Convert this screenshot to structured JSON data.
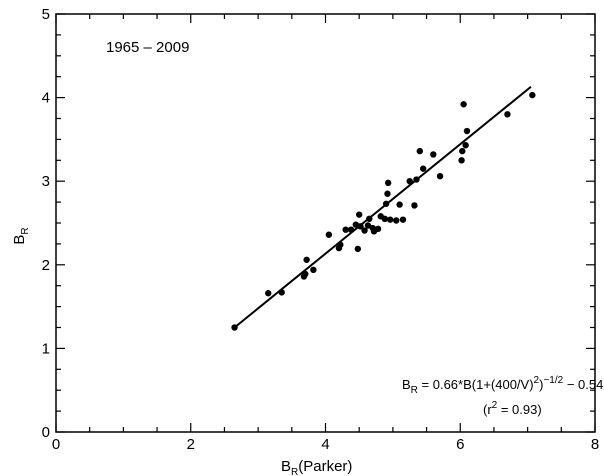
{
  "chart_data": {
    "type": "scatter",
    "period_label": "1965 – 2009",
    "xlabel": {
      "main": "B",
      "sub": "R",
      "rest": "(Parker)"
    },
    "ylabel": {
      "main": "B",
      "sub": "R"
    },
    "xlim": [
      0,
      8
    ],
    "ylim": [
      0,
      5
    ],
    "xticks": [
      0,
      2,
      4,
      6,
      8
    ],
    "yticks": [
      0,
      1,
      2,
      3,
      4,
      5
    ],
    "grid": false,
    "formula": {
      "lhs_main": "B",
      "lhs_sub": "R",
      "text1": " = 0.66*B(1+(400/V)",
      "sup1": "2",
      "text2": ")",
      "sup2": "−1/2",
      "text3": " − 0.54"
    },
    "r2": {
      "open": "(r",
      "sup": "2",
      "close": " = 0.93)"
    },
    "fit_line": {
      "x": [
        2.65,
        7.05
      ],
      "y": [
        1.25,
        4.13
      ]
    },
    "points": [
      {
        "x": 2.65,
        "y": 1.25
      },
      {
        "x": 3.15,
        "y": 1.66
      },
      {
        "x": 3.35,
        "y": 1.67
      },
      {
        "x": 3.68,
        "y": 1.86
      },
      {
        "x": 3.7,
        "y": 1.89
      },
      {
        "x": 3.72,
        "y": 2.06
      },
      {
        "x": 3.82,
        "y": 1.94
      },
      {
        "x": 4.05,
        "y": 2.36
      },
      {
        "x": 4.2,
        "y": 2.2
      },
      {
        "x": 4.22,
        "y": 2.24
      },
      {
        "x": 4.3,
        "y": 2.42
      },
      {
        "x": 4.38,
        "y": 2.42
      },
      {
        "x": 4.45,
        "y": 2.48
      },
      {
        "x": 4.48,
        "y": 2.19
      },
      {
        "x": 4.5,
        "y": 2.6
      },
      {
        "x": 4.52,
        "y": 2.46
      },
      {
        "x": 4.58,
        "y": 2.41
      },
      {
        "x": 4.63,
        "y": 2.47
      },
      {
        "x": 4.65,
        "y": 2.55
      },
      {
        "x": 4.7,
        "y": 2.44
      },
      {
        "x": 4.72,
        "y": 2.4
      },
      {
        "x": 4.78,
        "y": 2.43
      },
      {
        "x": 4.82,
        "y": 2.58
      },
      {
        "x": 4.88,
        "y": 2.55
      },
      {
        "x": 4.9,
        "y": 2.73
      },
      {
        "x": 4.92,
        "y": 2.85
      },
      {
        "x": 4.93,
        "y": 2.98
      },
      {
        "x": 4.96,
        "y": 2.54
      },
      {
        "x": 5.05,
        "y": 2.53
      },
      {
        "x": 5.1,
        "y": 2.72
      },
      {
        "x": 5.15,
        "y": 2.54
      },
      {
        "x": 5.25,
        "y": 3.0
      },
      {
        "x": 5.32,
        "y": 2.71
      },
      {
        "x": 5.35,
        "y": 3.02
      },
      {
        "x": 5.4,
        "y": 3.36
      },
      {
        "x": 5.45,
        "y": 3.15
      },
      {
        "x": 5.6,
        "y": 3.32
      },
      {
        "x": 5.7,
        "y": 3.06
      },
      {
        "x": 6.02,
        "y": 3.25
      },
      {
        "x": 6.03,
        "y": 3.36
      },
      {
        "x": 6.05,
        "y": 3.92
      },
      {
        "x": 6.08,
        "y": 3.43
      },
      {
        "x": 6.1,
        "y": 3.6
      },
      {
        "x": 6.7,
        "y": 3.8
      },
      {
        "x": 7.07,
        "y": 4.03
      }
    ]
  }
}
